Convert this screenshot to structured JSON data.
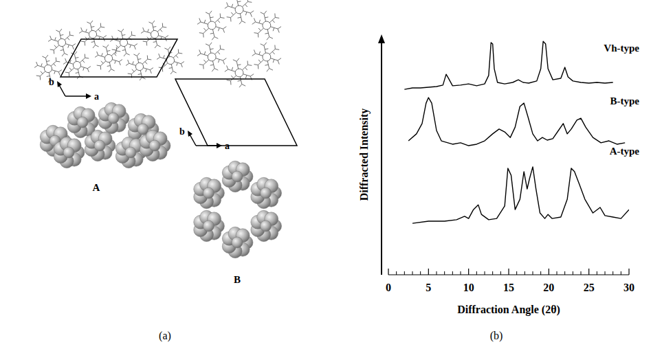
{
  "chart_data": {
    "type": "line",
    "xlabel": "Diffraction Angle (2θ)",
    "ylabel": "Diffracted Intensity",
    "xlim": [
      0,
      30
    ],
    "xticks": [
      0,
      5,
      10,
      15,
      20,
      25,
      30
    ],
    "ylim": [
      0,
      100
    ],
    "tick_labels": "x",
    "series": [
      {
        "name": "Vh-type",
        "color": "#000000",
        "x": [
          2,
          3,
          4,
          5,
          6,
          6.8,
          7.2,
          7.5,
          8,
          9,
          10,
          11,
          12,
          12.5,
          12.8,
          13.0,
          13.2,
          13.6,
          14.5,
          15.5,
          16.2,
          16.8,
          17.5,
          18.5,
          19.0,
          19.3,
          19.6,
          19.9,
          20.5,
          21.5,
          22.0,
          22.4,
          23,
          24,
          25,
          26,
          27,
          28
        ],
        "values": [
          77.1,
          77.7,
          77.7,
          78.0,
          78.3,
          78.9,
          83.4,
          81.7,
          78.6,
          78.9,
          79.4,
          78.6,
          79.4,
          82.9,
          96.6,
          96.0,
          85.7,
          80.0,
          79.4,
          80.0,
          81.1,
          80.0,
          79.7,
          80.6,
          85.7,
          97.1,
          96.0,
          85.7,
          81.1,
          81.7,
          86.3,
          82.3,
          80.6,
          80.0,
          79.7,
          80.0,
          79.7,
          80.0
        ]
      },
      {
        "name": "B-type",
        "color": "#000000",
        "x": [
          2.5,
          3.5,
          4.2,
          4.7,
          5.0,
          5.4,
          6.0,
          6.6,
          8,
          9,
          10,
          11,
          12,
          13,
          13.8,
          14.5,
          15.2,
          15.8,
          16.4,
          16.9,
          17.4,
          18,
          18.6,
          19.2,
          19.8,
          20.5,
          21.2,
          21.8,
          22.3,
          22.8,
          23.5,
          24,
          24.6,
          25.5,
          26.5,
          27.5,
          28.5,
          29.5
        ],
        "values": [
          55.7,
          58.6,
          62.9,
          71.4,
          73.7,
          71.4,
          60.0,
          55.7,
          54.3,
          54.9,
          53.7,
          54.3,
          55.7,
          58.6,
          60.6,
          59.4,
          57.1,
          61.4,
          70.0,
          71.4,
          65.7,
          58.6,
          55.7,
          57.1,
          56.0,
          56.6,
          60.0,
          62.9,
          58.6,
          60.6,
          64.3,
          65.1,
          61.4,
          57.1,
          54.9,
          55.7,
          54.3,
          54.9
        ]
      },
      {
        "name": "A-type",
        "color": "#000000",
        "x": [
          3,
          5,
          7,
          8.5,
          9.5,
          10,
          10.6,
          11.2,
          11.6,
          12.5,
          13.5,
          14.5,
          14.9,
          15.3,
          15.8,
          16.4,
          16.9,
          17.3,
          17.6,
          18.0,
          18.4,
          18.9,
          19.5,
          19.9,
          20.4,
          21.5,
          22.3,
          22.8,
          23.2,
          23.8,
          24.5,
          25.5,
          26.4,
          27,
          28,
          29,
          30
        ],
        "values": [
          21.4,
          22.3,
          22.3,
          22.9,
          24.3,
          23.4,
          27.1,
          29.1,
          25.1,
          22.9,
          23.4,
          28.6,
          44.3,
          41.4,
          27.1,
          31.4,
          42.9,
          35.7,
          40.0,
          44.9,
          35.7,
          25.7,
          23.4,
          25.1,
          23.4,
          24.0,
          31.4,
          44.3,
          42.9,
          37.7,
          31.4,
          25.7,
          28.0,
          24.6,
          24.0,
          23.4,
          27.1
        ]
      }
    ]
  },
  "chart_label": "(b)",
  "diagram": {
    "label": "(a)",
    "structures": [
      {
        "label": "A",
        "axes": [
          "a",
          "b"
        ]
      },
      {
        "label": "B",
        "axes": [
          "a",
          "b"
        ]
      }
    ]
  }
}
